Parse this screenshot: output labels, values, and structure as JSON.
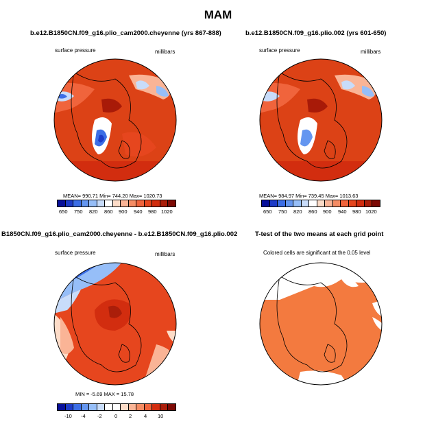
{
  "title": "MAM",
  "panels": [
    {
      "title": "b.e12.B1850CN.f09_g16.plio_cam2000.cheyenne (yrs 867-888)",
      "left_label": "surface pressure",
      "right_label": "millibars",
      "stats": "MEAN= 990.71   Min= 744.20   Max= 1020.73",
      "cbar_ticks": [
        "650",
        "750",
        "820",
        "860",
        "900",
        "940",
        "980",
        "1020"
      ]
    },
    {
      "title": "b.e12.B1850CN.f09_g16.plio.002 (yrs 601-650)",
      "left_label": "surface pressure",
      "right_label": "millibars",
      "stats": "MEAN= 984.97   Min= 739.45   Max= 1013.63",
      "cbar_ticks": [
        "650",
        "750",
        "820",
        "860",
        "900",
        "940",
        "980",
        "1020"
      ]
    },
    {
      "title": "B1850CN.f09_g16.plio_cam2000.cheyenne - b.e12.B1850CN.f09_g16.plio.002",
      "left_label": "surface pressure",
      "right_label": "millibars",
      "stats": "MIN =  -5.69  MAX =  15.78",
      "cbar_ticks": [
        "-10",
        "-4",
        "-2",
        "0",
        "2",
        "4",
        "10"
      ]
    },
    {
      "title": "T-test of the two means at each grid point",
      "subtitle": "Colored cells are significant at the 0.05 level"
    }
  ],
  "colors": {
    "abs_cbar": [
      "#08109a",
      "#1e3cc8",
      "#3c6ee6",
      "#6496f0",
      "#96bef8",
      "#c8dcfa",
      "#ffffff",
      "#fddcc8",
      "#fab496",
      "#f58c64",
      "#f0643c",
      "#e6461e",
      "#d22d0f",
      "#aa1e0a",
      "#7d0a05"
    ],
    "diff_cbar": [
      "#08109a",
      "#1e3cc8",
      "#3c6ee6",
      "#6496f0",
      "#96bef8",
      "#c8dcfa",
      "#ffffff",
      "#ffffff",
      "#fddcc8",
      "#fab496",
      "#f58c64",
      "#f0643c",
      "#d22d0f",
      "#aa1e0a",
      "#7d0a05"
    ],
    "map_red": "#dc4216",
    "map_dark": "#a81a08",
    "ttest_orange": "#f37a3f"
  }
}
